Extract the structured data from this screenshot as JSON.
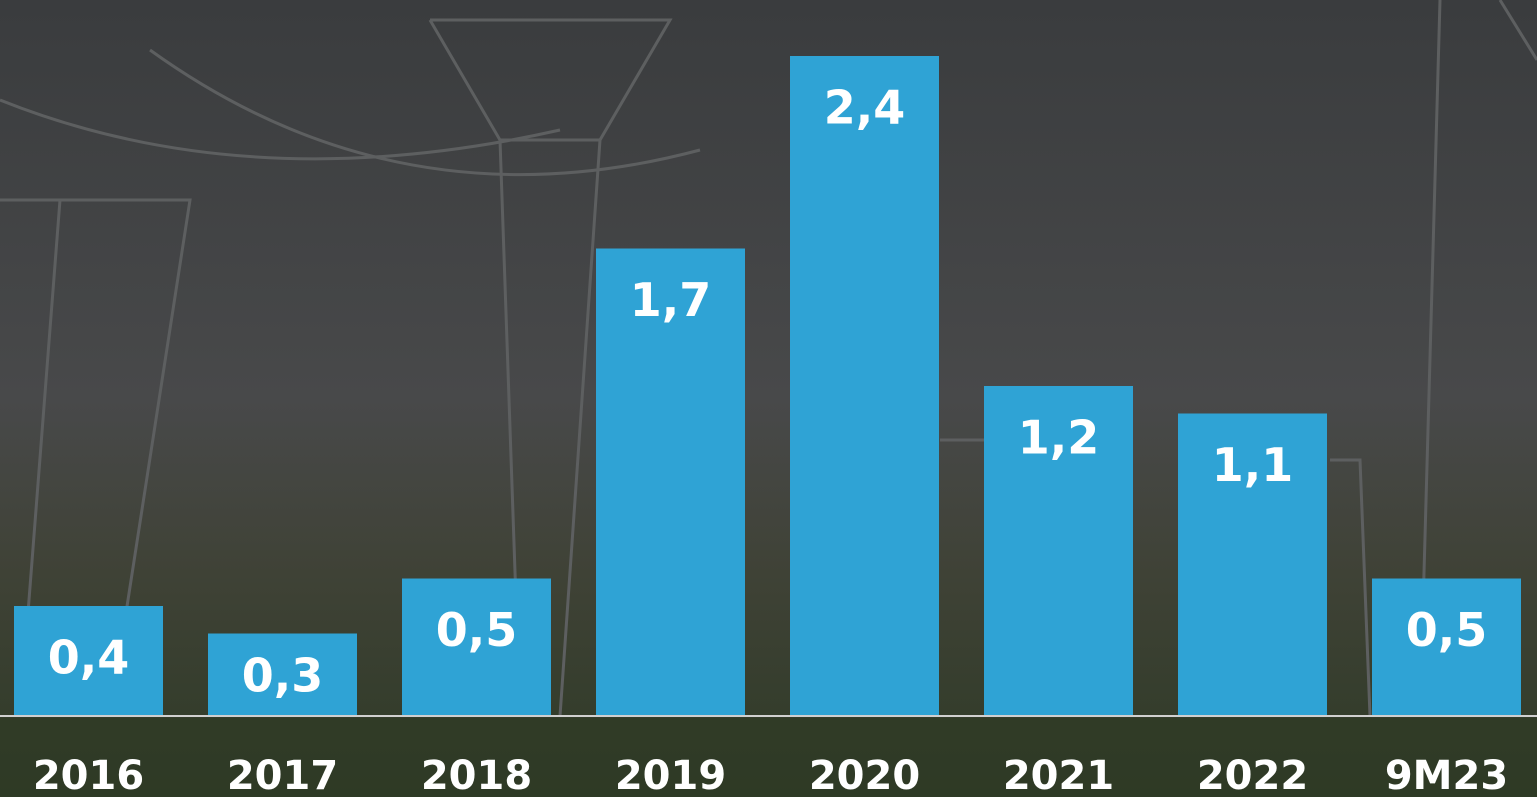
{
  "chart_data": {
    "type": "bar",
    "categories": [
      "2016",
      "2017",
      "2018",
      "2019",
      "2020",
      "2021",
      "2022",
      "9M23"
    ],
    "values": [
      0.4,
      0.3,
      0.5,
      1.7,
      2.4,
      1.2,
      1.1,
      0.5
    ],
    "value_labels": [
      "0,4",
      "0,3",
      "0,5",
      "1,7",
      "2,4",
      "1,2",
      "1,1",
      "0,5"
    ],
    "color": "#2fa3d5",
    "ylim": [
      0,
      2.4
    ]
  }
}
